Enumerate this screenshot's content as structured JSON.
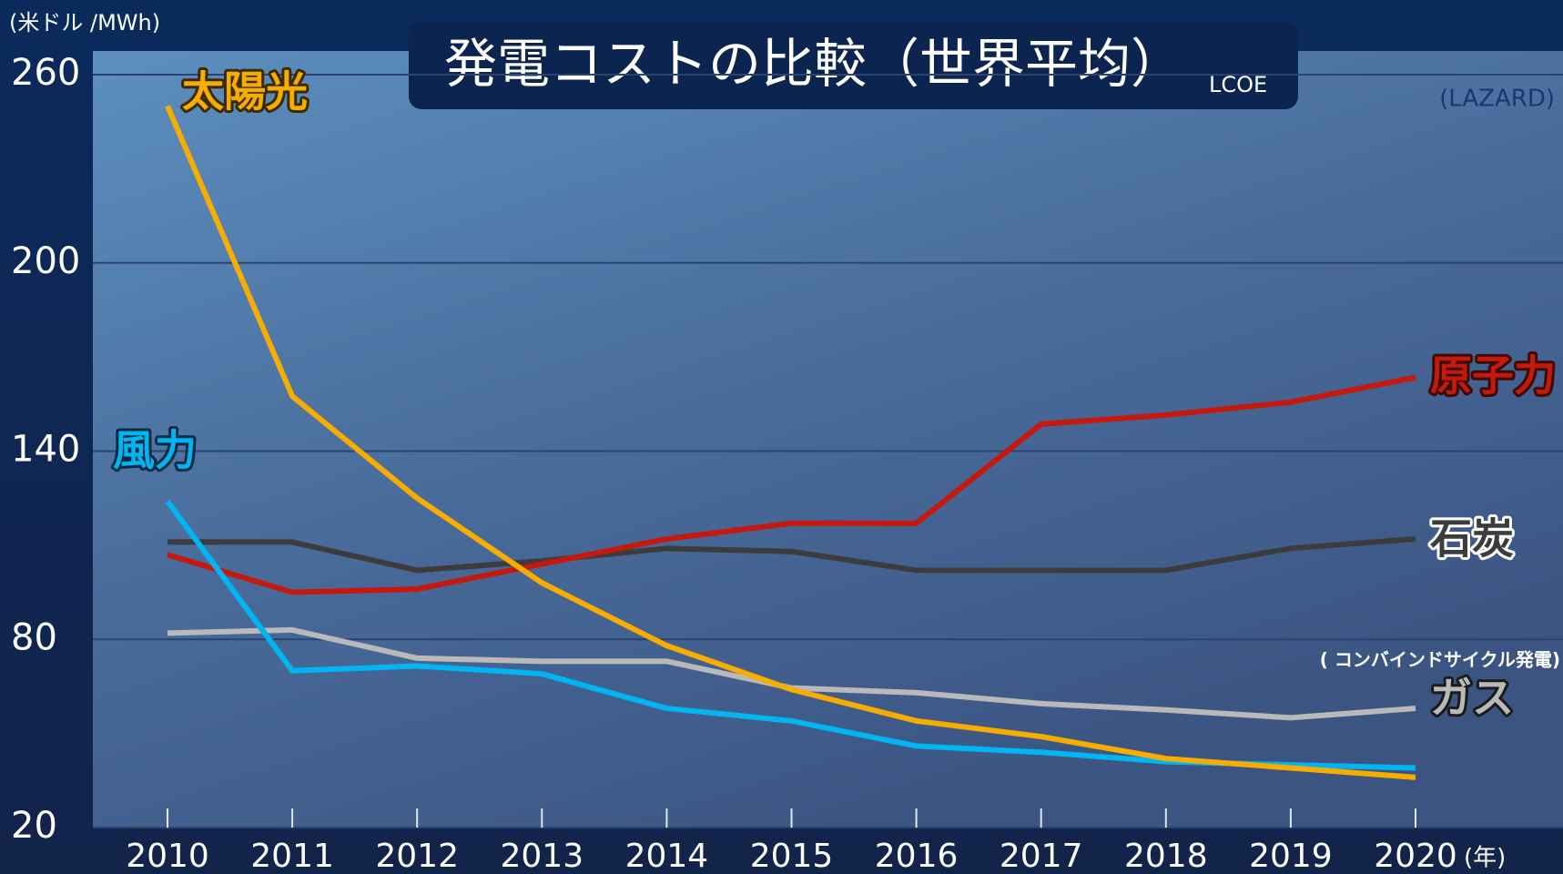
{
  "chart_data": {
    "type": "line",
    "title": "発電コストの比較（世界平均）",
    "subtitle": "LCOE",
    "source": "(LAZARD)",
    "y_label": "(米ドル /MWh)",
    "x_unit": "(年)",
    "annotation": "( コンバインドサイクル発電)",
    "categories": [
      "2010",
      "2011",
      "2012",
      "2013",
      "2014",
      "2015",
      "2016",
      "2017",
      "2018",
      "2019",
      "2020"
    ],
    "ylim": [
      20,
      260
    ],
    "yticks": [
      20,
      80,
      140,
      200,
      260
    ],
    "grid": true,
    "series": [
      {
        "name": "太陽光",
        "color": "#f7ad00",
        "values": [
          250,
          157.5,
          125,
          98,
          78,
          64,
          54,
          49,
          42,
          39,
          36
        ]
      },
      {
        "name": "風力",
        "color": "#00b5f2",
        "values": [
          124,
          70,
          71.5,
          69,
          58,
          54,
          46,
          44,
          41,
          40,
          39
        ]
      },
      {
        "name": "原子力",
        "color": "#c4190c",
        "values": [
          107,
          95,
          96,
          104,
          112,
          117,
          117,
          148.6,
          151.5,
          155.6,
          163.5
        ]
      },
      {
        "name": "石炭",
        "color": "#3c3c3c",
        "values": [
          111,
          111,
          102,
          105,
          109,
          108,
          102,
          102,
          102,
          109,
          112
        ]
      },
      {
        "name": "ガス",
        "color": "#b9b9b9",
        "values": [
          82,
          83,
          74,
          73,
          73,
          64.5,
          63,
          59.5,
          57.5,
          55,
          58
        ]
      }
    ]
  }
}
